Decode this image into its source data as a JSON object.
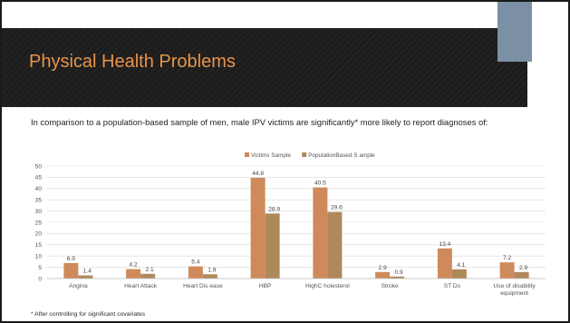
{
  "slide": {
    "title": "Physical Health Problems",
    "intro": "In comparison to a population-based sample of men, male IPV victims are significantly* more likely to report diagnoses of:",
    "footnote": "* After controlling for significant covariates"
  },
  "colors": {
    "victims": "#cf8a5c",
    "population": "#b0895b",
    "title": "#e8944a",
    "accent_block": "#7b90a5",
    "banner": "#1c1c1c"
  },
  "chart_data": {
    "type": "bar",
    "categories": [
      "Angina",
      "Heart Attack",
      "Heart Dis ease",
      "HBP",
      "HighC holesterol",
      "Stroke",
      "ST Ds",
      "Use of disability equipment"
    ],
    "series": [
      {
        "name": "Victims Sample",
        "values": [
          6.9,
          4.2,
          5.4,
          44.8,
          40.5,
          2.9,
          13.4,
          7.2
        ]
      },
      {
        "name": "PopulationBased S ample",
        "values": [
          1.4,
          2.1,
          1.9,
          28.9,
          29.6,
          0.9,
          4.1,
          2.9
        ]
      }
    ],
    "ylim": [
      0,
      50
    ],
    "yticks": [
      0,
      5,
      10,
      15,
      20,
      25,
      30,
      35,
      40,
      45,
      50
    ],
    "grid": true,
    "legend": "top-center",
    "data_labels": true
  }
}
